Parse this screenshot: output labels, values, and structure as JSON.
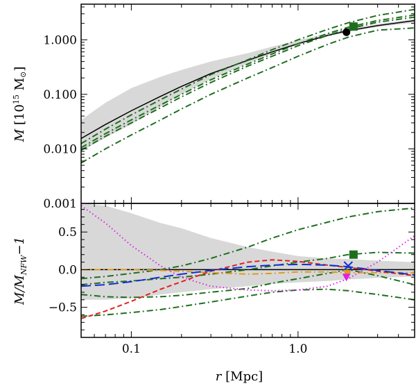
{
  "chart_data": [
    {
      "type": "line",
      "panel": "top",
      "xscale": "log",
      "yscale": "log",
      "xlim": [
        0.05,
        5.0
      ],
      "ylim": [
        0.001,
        4.5
      ],
      "ylabel": "M [10^15 M⊙]",
      "ylabel_parts": {
        "sym": "M",
        "unit": "[10",
        "exp": "15",
        "msun": "M",
        "sun": "⊙",
        "close": "]"
      },
      "yticks": [
        {
          "value": 0.001,
          "label": "0.001"
        },
        {
          "value": 0.01,
          "label": "0.010"
        },
        {
          "value": 0.1,
          "label": "0.100"
        },
        {
          "value": 1.0,
          "label": "1.000"
        }
      ],
      "band": {
        "name": "Uncertainty band",
        "color": "#d8d8d8",
        "x": [
          0.05,
          0.07,
          0.1,
          0.15,
          0.2,
          0.3,
          0.5,
          0.7,
          1.0,
          1.5,
          2.0,
          3.0,
          5.0
        ],
        "lower": [
          0.009,
          0.016,
          0.028,
          0.06,
          0.1,
          0.19,
          0.37,
          0.56,
          0.82,
          1.15,
          1.4,
          1.72,
          2.05
        ],
        "upper": [
          0.034,
          0.07,
          0.13,
          0.21,
          0.28,
          0.4,
          0.57,
          0.75,
          0.98,
          1.3,
          1.55,
          1.95,
          2.4
        ]
      },
      "series": [
        {
          "name": "NFW best fit",
          "color": "#000000",
          "style": "solid",
          "x": [
            0.05,
            0.07,
            0.1,
            0.15,
            0.2,
            0.3,
            0.5,
            0.7,
            1.0,
            1.5,
            2.0,
            3.0,
            5.0
          ],
          "y": [
            0.0155,
            0.028,
            0.05,
            0.092,
            0.14,
            0.24,
            0.42,
            0.6,
            0.85,
            1.2,
            1.47,
            1.82,
            2.25
          ]
        },
        {
          "name": "dash-dot upper",
          "color": "#1f6e1f",
          "style": "dashdot",
          "x": [
            0.05,
            0.07,
            0.1,
            0.15,
            0.2,
            0.3,
            0.5,
            0.7,
            1.0,
            1.5,
            2.0,
            3.0,
            5.0
          ],
          "y": [
            0.0125,
            0.023,
            0.042,
            0.08,
            0.125,
            0.23,
            0.43,
            0.66,
            1.0,
            1.55,
            2.05,
            2.8,
            3.6
          ]
        },
        {
          "name": "dash-dot middle A",
          "color": "#1f6e1f",
          "style": "dashdot",
          "x": [
            0.05,
            0.07,
            0.1,
            0.15,
            0.2,
            0.3,
            0.5,
            0.7,
            1.0,
            1.5,
            2.0,
            3.0,
            5.0
          ],
          "y": [
            0.0105,
            0.019,
            0.034,
            0.064,
            0.1,
            0.185,
            0.36,
            0.55,
            0.85,
            1.3,
            1.7,
            2.25,
            2.85
          ]
        },
        {
          "name": "dash-dot middle B",
          "color": "#1f6e1f",
          "style": "dashdot",
          "x": [
            0.05,
            0.07,
            0.1,
            0.15,
            0.2,
            0.3,
            0.5,
            0.7,
            1.0,
            1.5,
            2.0,
            3.0,
            5.0
          ],
          "y": [
            0.0095,
            0.017,
            0.03,
            0.057,
            0.09,
            0.165,
            0.33,
            0.5,
            0.78,
            1.2,
            1.58,
            2.1,
            2.6
          ]
        },
        {
          "name": "dash-dot lower",
          "color": "#1f6e1f",
          "style": "dashdot",
          "x": [
            0.05,
            0.07,
            0.1,
            0.15,
            0.2,
            0.3,
            0.5,
            0.7,
            1.0,
            1.5,
            2.0,
            3.0,
            5.0
          ],
          "y": [
            0.0055,
            0.01,
            0.018,
            0.034,
            0.054,
            0.1,
            0.2,
            0.31,
            0.5,
            0.82,
            1.12,
            1.5,
            1.65
          ]
        }
      ],
      "markers": [
        {
          "name": "circle marker",
          "shape": "circle",
          "color": "#000000",
          "x": 1.95,
          "y": 1.38
        },
        {
          "name": "square marker",
          "shape": "square",
          "color": "#1f6e1f",
          "x": 2.15,
          "y": 1.75
        }
      ]
    },
    {
      "type": "line",
      "panel": "bottom",
      "xscale": "log",
      "yscale": "linear",
      "xlim": [
        0.05,
        5.0
      ],
      "ylim": [
        -0.9,
        0.88
      ],
      "xlabel": "r [Mpc]",
      "xlabel_parts": {
        "sym": "r",
        "unit": "[Mpc]"
      },
      "ylabel": "M/M_NFW - 1",
      "ylabel_parts": {
        "num": "M/M",
        "sub": "NFW",
        "tail": "−1"
      },
      "xticks": [
        {
          "value": 0.1,
          "label": "0.1"
        },
        {
          "value": 1.0,
          "label": "1.0"
        }
      ],
      "yticks": [
        {
          "value": -0.5,
          "label": "−0.5"
        },
        {
          "value": 0.0,
          "label": "0.0"
        },
        {
          "value": 0.5,
          "label": "0.5"
        }
      ],
      "zero_line": 0.0,
      "band": {
        "name": "Residual uncertainty band",
        "color": "#d8d8d8",
        "x": [
          0.05,
          0.07,
          0.1,
          0.15,
          0.2,
          0.3,
          0.5,
          0.7,
          1.0,
          1.5,
          2.0,
          3.0,
          5.0
        ],
        "lower": [
          -0.4,
          -0.4,
          -0.38,
          -0.33,
          -0.3,
          -0.26,
          -0.22,
          -0.19,
          -0.17,
          -0.15,
          -0.13,
          -0.11,
          -0.09
        ],
        "upper": [
          0.88,
          0.85,
          0.75,
          0.62,
          0.55,
          0.42,
          0.3,
          0.24,
          0.18,
          0.15,
          0.14,
          0.12,
          0.1
        ]
      },
      "series": [
        {
          "name": "green dash-dot top",
          "color": "#1f6e1f",
          "style": "dashdot",
          "x": [
            0.05,
            0.07,
            0.1,
            0.15,
            0.2,
            0.3,
            0.5,
            0.7,
            1.0,
            1.5,
            2.0,
            3.0,
            5.0
          ],
          "y": [
            -0.12,
            -0.09,
            -0.05,
            0.0,
            0.05,
            0.15,
            0.3,
            0.42,
            0.53,
            0.63,
            0.7,
            0.77,
            0.82
          ]
        },
        {
          "name": "green dash-dot mid",
          "color": "#1f6e1f",
          "style": "dashdot",
          "x": [
            0.05,
            0.07,
            0.1,
            0.15,
            0.2,
            0.3,
            0.5,
            0.7,
            1.0,
            1.5,
            2.0,
            3.0,
            5.0
          ],
          "y": [
            -0.2,
            -0.17,
            -0.15,
            -0.12,
            -0.1,
            -0.06,
            0.0,
            0.05,
            0.1,
            0.15,
            0.2,
            0.23,
            0.22
          ]
        },
        {
          "name": "green dash-dot low",
          "color": "#1f6e1f",
          "style": "dashdot",
          "x": [
            0.05,
            0.07,
            0.1,
            0.15,
            0.2,
            0.3,
            0.5,
            0.7,
            1.0,
            1.5,
            2.0,
            3.0,
            5.0
          ],
          "y": [
            -0.33,
            -0.36,
            -0.37,
            -0.36,
            -0.34,
            -0.3,
            -0.25,
            -0.18,
            -0.12,
            -0.05,
            0.0,
            -0.08,
            -0.2
          ]
        },
        {
          "name": "green dash-dot bottom",
          "color": "#1f6e1f",
          "style": "dashdot",
          "x": [
            0.05,
            0.07,
            0.1,
            0.15,
            0.2,
            0.3,
            0.5,
            0.7,
            1.0,
            1.5,
            2.0,
            3.0,
            5.0
          ],
          "y": [
            -0.62,
            -0.6,
            -0.57,
            -0.53,
            -0.49,
            -0.43,
            -0.35,
            -0.3,
            -0.27,
            -0.26,
            -0.28,
            -0.33,
            -0.4
          ]
        },
        {
          "name": "orange dash-dot",
          "color": "#e09a20",
          "style": "dashdot",
          "x": [
            0.05,
            0.07,
            0.1,
            0.15,
            0.2,
            0.3,
            0.5,
            0.7,
            1.0,
            1.5,
            2.0,
            3.0,
            5.0
          ],
          "y": [
            0.0,
            0.0,
            0.0,
            -0.01,
            -0.02,
            -0.04,
            -0.06,
            -0.05,
            -0.03,
            -0.03,
            -0.04,
            -0.04,
            -0.04
          ]
        },
        {
          "name": "red dashed",
          "color": "#e02020",
          "style": "dashed",
          "x": [
            0.05,
            0.07,
            0.1,
            0.15,
            0.2,
            0.3,
            0.5,
            0.7,
            1.0,
            1.5,
            2.0,
            3.0,
            5.0
          ],
          "y": [
            -0.65,
            -0.55,
            -0.42,
            -0.26,
            -0.16,
            -0.02,
            0.1,
            0.13,
            0.11,
            0.06,
            0.03,
            -0.02,
            -0.08
          ]
        },
        {
          "name": "blue long-dashed",
          "color": "#1030d0",
          "style": "longdash",
          "x": [
            0.05,
            0.07,
            0.1,
            0.15,
            0.2,
            0.3,
            0.5,
            0.7,
            1.0,
            1.5,
            2.0,
            3.0,
            5.0
          ],
          "y": [
            -0.22,
            -0.2,
            -0.16,
            -0.1,
            -0.06,
            -0.01,
            0.04,
            0.06,
            0.07,
            0.06,
            0.04,
            -0.01,
            -0.07
          ]
        },
        {
          "name": "magenta dotted",
          "color": "#e020e0",
          "style": "dotted",
          "x": [
            0.05,
            0.07,
            0.1,
            0.15,
            0.2,
            0.3,
            0.5,
            0.7,
            1.0,
            1.5,
            2.0,
            3.0,
            5.0
          ],
          "y": [
            0.85,
            0.62,
            0.32,
            0.05,
            -0.1,
            -0.22,
            -0.27,
            -0.28,
            -0.27,
            -0.22,
            -0.12,
            0.1,
            0.45
          ]
        }
      ],
      "markers": [
        {
          "name": "square marker",
          "shape": "square",
          "color": "#1f6e1f",
          "x": 2.15,
          "y": 0.2
        },
        {
          "name": "x marker",
          "shape": "cross",
          "color": "#1030d0",
          "x": 2.0,
          "y": 0.05
        },
        {
          "name": "orange triangle marker",
          "shape": "triangle",
          "color": "#e09a20",
          "x": 1.97,
          "y": -0.05
        },
        {
          "name": "magenta triangle marker",
          "shape": "triangle",
          "color": "#e020e0",
          "x": 1.95,
          "y": -0.1
        }
      ]
    }
  ]
}
